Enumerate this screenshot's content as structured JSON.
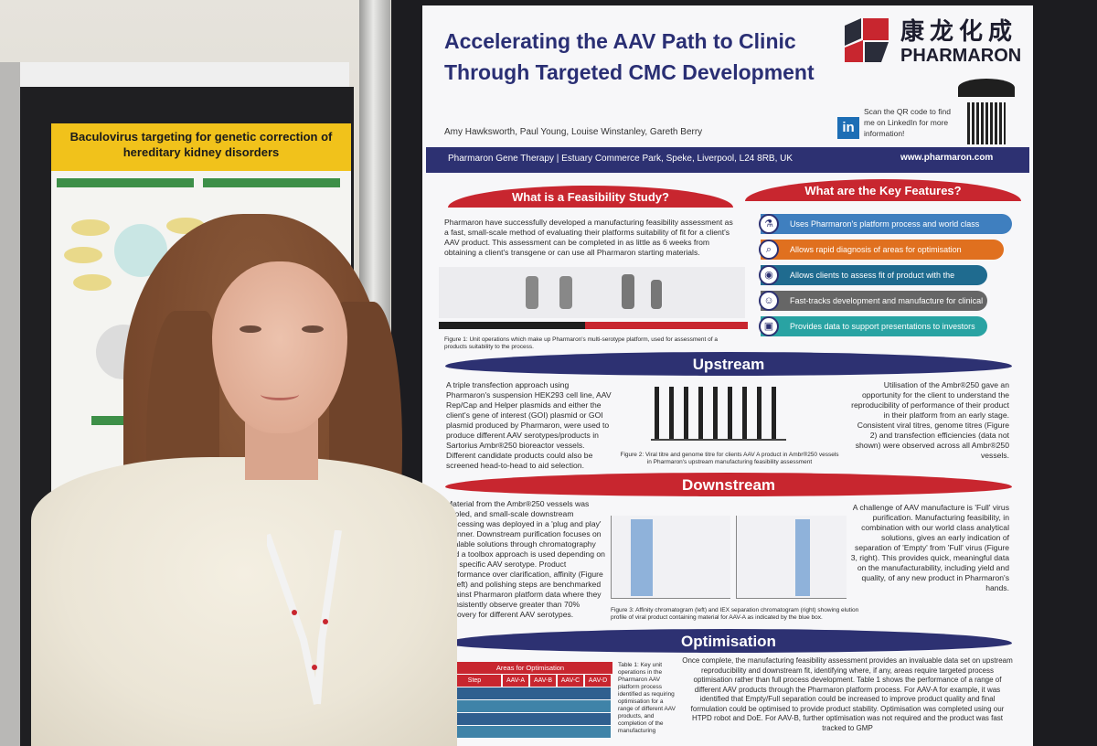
{
  "poster": {
    "title": "Accelerating the AAV Path to Clinic Through Targeted CMC Development",
    "logo_cn": "康龙化成",
    "logo_en": "PHARMARON",
    "qr_text": "Scan the QR code to find me on LinkedIn for more information!",
    "authors": "Amy Hawksworth, Paul Young, Louise Winstanley, Gareth Berry",
    "affiliation": "Pharmaron Gene Therapy | Estuary Commerce Park, Speke, Liverpool, L24 8RB, UK",
    "website": "www.pharmaron.com",
    "feasibility_heading": "What is a Feasibility Study?",
    "feasibility_text": "Pharmaron have successfully developed a manufacturing feasibility assessment as a fast, small-scale method of evaluating their platforms suitability of fit for a client's AAV product. This assessment can be completed in as little as 6 weeks from obtaining a client's transgene or can use all Pharmaron starting materials.",
    "features_heading": "What are the Key Features?",
    "features": [
      "Uses Pharmaron's platform process and world class analytics at small scale",
      "Allows rapid diagnosis of areas for optimisation",
      "Allows clients to assess fit of product with the Pharmaron platform",
      "Fast-tracks development and manufacture for clinical supply",
      "Provides data to support presentations to investors"
    ],
    "upstream_heading": "Upstream",
    "upstream_left": "A triple transfection approach using Pharmaron's suspension HEK293 cell line, AAV Rep/Cap and Helper plasmids and either the client's gene of interest (GOI) plasmid or GOI plasmid produced by Pharmaron, were used to produce different AAV serotypes/products in Sartorius Ambr®250 bioreactor vessels. Different candidate products could also be screened head-to-head to aid selection.",
    "upstream_right": "Utilisation of the Ambr®250 gave an opportunity for the client to understand the reproducibility of performance of their product in their platform from an early stage. Consistent viral titres, genome titres (Figure 2) and transfection efficiencies (data not shown) were observed across all Ambr®250 vessels.",
    "downstream_heading": "Downstream",
    "downstream_left": "Material from the Ambr®250 vessels was pooled, and small-scale downstream processing was deployed in a 'plug and play' manner. Downstream purification focuses on scalable solutions through chromatography and a toolbox approach is used depending on the specific AAV serotype. Product performance over clarification, affinity (Figure 3, left) and polishing steps are benchmarked against Pharmaron platform data where they consistently observe greater than 70% recovery for different AAV serotypes.",
    "downstream_right": "A challenge of AAV manufacture is 'Full' virus purification. Manufacturing feasibility, in combination with our world class analytical solutions, gives an early indication of separation of 'Empty' from 'Full' virus (Figure 3, right). This provides quick, meaningful data on the manufacturability, including yield and quality, of any new product in Pharmaron's hands.",
    "optimisation_heading": "Optimisation",
    "optimisation_text": "Once complete, the manufacturing feasibility assessment provides an invaluable data set on upstream reproducibility and downstream fit, identifying where, if any, areas require targeted process optimisation rather than full process development. Table 1 shows the performance of a range of different AAV products through the Pharmaron platform process. For AAV-A for example, it was identified that Empty/Full separation could be increased to improve product quality and final formulation could be optimised to provide product stability. Optimisation was completed using our HTPD robot and DoE. For AAV-B, further optimisation was not required and the product was fast tracked to GMP",
    "table_title": "Areas for Optimisation",
    "table_headers": [
      "Step",
      "AAV-A",
      "AAV-B",
      "AAV-C",
      "AAV-D"
    ],
    "fig1_caption": "Figure 1: Unit operations which make up Pharmaron's multi-serotype platform, used for assessment of a products suitability to the process.",
    "fig2_caption": "Figure 2: Viral titre and genome titre for clients AAV A product in Ambr®250 vessels in Pharmaron's upstream manufacturing feasibility assessment",
    "fig3_caption": "Figure 3: Affinity chromatogram (left) and IEX separation chromatogram (right) showing elution profile of viral product containing material for AAV-A as indicated by the blue box.",
    "table_caption": "Table 1: Key unit operations in the Pharmaron AAV platform process identified as requiring optimisation for a range of different AAV products, and completion of the manufacturing"
  },
  "left_poster": {
    "title": "Baculovirus targeting for genetic correction of hereditary kidney disorders"
  },
  "colors": {
    "navy": "#2d3172",
    "red": "#c8262f",
    "feature_bars": [
      "#3f7fbf",
      "#e0701f",
      "#1f6b8f",
      "#666666",
      "#29a3a3"
    ]
  }
}
